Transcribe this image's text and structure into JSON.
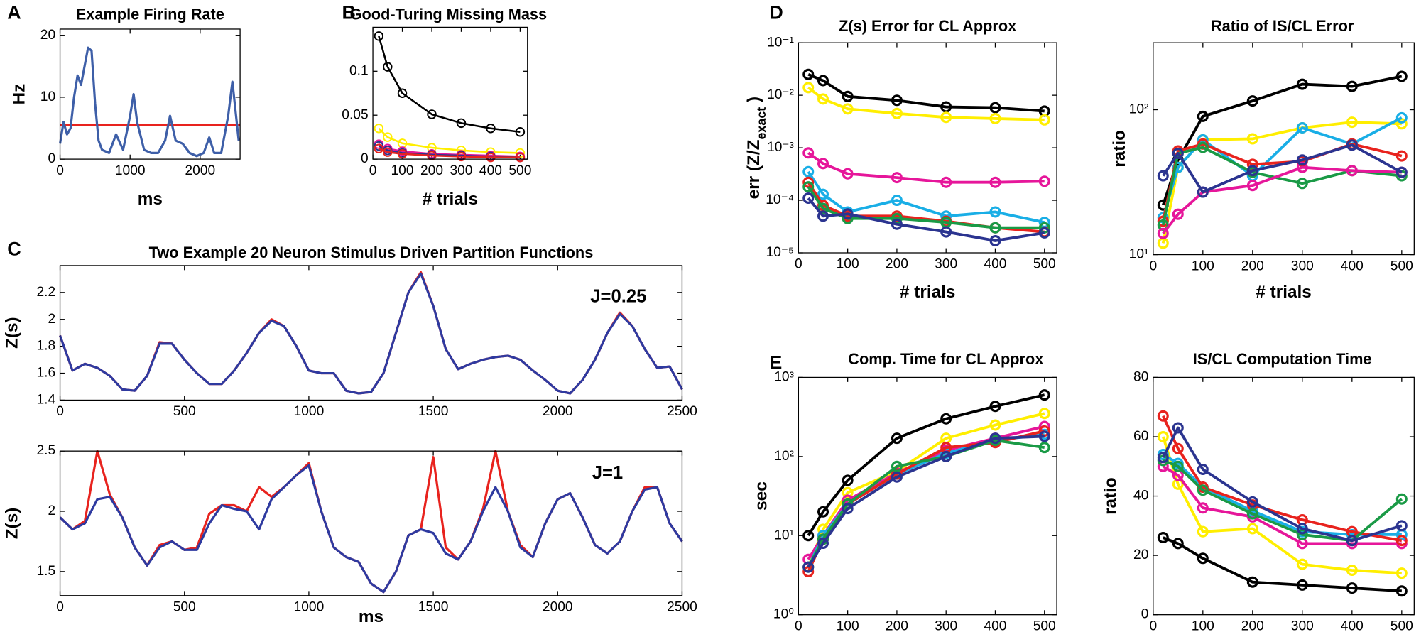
{
  "chart_data": [
    {
      "type": "line",
      "panel": "A",
      "title": "Example Firing Rate",
      "xlabel": "ms",
      "ylabel": "Hz",
      "x": [
        0,
        50,
        100,
        150,
        200,
        250,
        300,
        350,
        400,
        450,
        500,
        550,
        600,
        700,
        800,
        900,
        1000,
        1050,
        1100,
        1200,
        1300,
        1400,
        1500,
        1570,
        1650,
        1750,
        1850,
        1950,
        2050,
        2130,
        2200,
        2300,
        2400,
        2460,
        2550
      ],
      "series": [
        {
          "color": "#3e5fa8",
          "values": [
            2.5,
            6,
            4,
            5,
            10,
            13.5,
            12,
            15,
            18,
            17.5,
            9,
            3,
            1.5,
            1,
            4,
            1.5,
            7,
            10.5,
            6,
            1.5,
            1,
            1,
            3,
            7,
            3,
            2.5,
            1,
            0.5,
            1,
            3.5,
            1,
            1,
            7,
            12.5,
            3
          ]
        }
      ],
      "hline": {
        "value": 5.5,
        "color": "#e8231e"
      },
      "xlim": [
        0,
        2570
      ],
      "ylim": [
        0,
        21
      ],
      "xticks": [
        0,
        1000,
        2000
      ],
      "yticks": [
        0,
        10,
        20
      ]
    },
    {
      "type": "line",
      "panel": "B",
      "title": "Good-Turing Missing Mass",
      "xlabel": "# trials",
      "markers": "small",
      "x": [
        20,
        50,
        100,
        200,
        300,
        400,
        500
      ],
      "series": [
        {
          "color": "#000000",
          "values": [
            0.14,
            0.105,
            0.075,
            0.051,
            0.041,
            0.035,
            0.031
          ]
        },
        {
          "color": "#ffee00",
          "values": [
            0.035,
            0.025,
            0.018,
            0.013,
            0.01,
            0.008,
            0.007
          ]
        },
        {
          "color": "#e6169a",
          "values": [
            0.017,
            0.012,
            0.009,
            0.006,
            0.005,
            0.004,
            0.003
          ]
        },
        {
          "color": "#2b3490",
          "values": [
            0.015,
            0.01,
            0.007,
            0.005,
            0.004,
            0.003,
            0.002
          ]
        },
        {
          "color": "#e8231e",
          "values": [
            0.012,
            0.008,
            0.006,
            0.004,
            0.003,
            0.002,
            0.002
          ]
        }
      ],
      "xlim": [
        0,
        525
      ],
      "ylim": [
        0,
        0.15
      ],
      "xticks": [
        0,
        100,
        200,
        300,
        400,
        500
      ],
      "yticks": [
        0,
        0.05,
        0.1
      ]
    },
    {
      "type": "line",
      "panel": "C",
      "title": "Two Example 20 Neuron Stimulus Driven Partition Functions",
      "ylabel": "Z(s)",
      "annotation": "J=0.25",
      "x": [
        0,
        50,
        100,
        150,
        200,
        250,
        300,
        350,
        400,
        450,
        500,
        550,
        600,
        650,
        700,
        750,
        800,
        850,
        900,
        950,
        1000,
        1050,
        1100,
        1150,
        1200,
        1250,
        1300,
        1350,
        1400,
        1450,
        1500,
        1550,
        1600,
        1650,
        1700,
        1750,
        1800,
        1850,
        1900,
        1950,
        2000,
        2050,
        2100,
        2150,
        2200,
        2250,
        2300,
        2350,
        2400,
        2450,
        2500
      ],
      "series": [
        {
          "color": "#e8231e",
          "values": [
            1.88,
            1.62,
            1.67,
            1.64,
            1.58,
            1.48,
            1.47,
            1.58,
            1.83,
            1.82,
            1.7,
            1.6,
            1.52,
            1.52,
            1.62,
            1.75,
            1.9,
            2.0,
            1.95,
            1.8,
            1.62,
            1.6,
            1.6,
            1.47,
            1.45,
            1.46,
            1.6,
            1.9,
            2.2,
            2.35,
            2.1,
            1.78,
            1.63,
            1.67,
            1.7,
            1.72,
            1.73,
            1.7,
            1.62,
            1.55,
            1.47,
            1.45,
            1.55,
            1.7,
            1.9,
            2.05,
            1.95,
            1.78,
            1.64,
            1.65,
            1.48
          ]
        },
        {
          "color": "#2e3aa0",
          "values": [
            1.88,
            1.62,
            1.67,
            1.64,
            1.58,
            1.48,
            1.47,
            1.58,
            1.82,
            1.82,
            1.7,
            1.6,
            1.52,
            1.52,
            1.62,
            1.75,
            1.9,
            1.99,
            1.95,
            1.8,
            1.62,
            1.6,
            1.6,
            1.47,
            1.45,
            1.46,
            1.6,
            1.9,
            2.2,
            2.34,
            2.1,
            1.78,
            1.63,
            1.67,
            1.7,
            1.72,
            1.73,
            1.7,
            1.62,
            1.55,
            1.47,
            1.45,
            1.55,
            1.7,
            1.9,
            2.04,
            1.95,
            1.78,
            1.64,
            1.65,
            1.48
          ]
        }
      ],
      "xlim": [
        0,
        2500
      ],
      "ylim": [
        1.4,
        2.4
      ],
      "xticks": [
        0,
        500,
        1000,
        1500,
        2000,
        2500
      ],
      "yticks": [
        1.4,
        1.6,
        1.8,
        2,
        2.2
      ]
    },
    {
      "type": "line",
      "xlabel": "ms",
      "ylabel": "Z(s)",
      "annotation": "J=1",
      "x": [
        0,
        50,
        100,
        150,
        200,
        250,
        300,
        350,
        400,
        450,
        500,
        550,
        600,
        650,
        700,
        750,
        800,
        850,
        900,
        950,
        1000,
        1050,
        1100,
        1150,
        1200,
        1250,
        1300,
        1350,
        1400,
        1450,
        1500,
        1550,
        1600,
        1650,
        1700,
        1750,
        1800,
        1850,
        1900,
        1950,
        2000,
        2050,
        2100,
        2150,
        2200,
        2250,
        2300,
        2350,
        2400,
        2450,
        2500
      ],
      "series": [
        {
          "color": "#e8231e",
          "values": [
            1.95,
            1.85,
            1.92,
            2.5,
            2.14,
            1.95,
            1.7,
            1.55,
            1.72,
            1.75,
            1.68,
            1.7,
            1.98,
            2.05,
            2.05,
            2.0,
            2.2,
            2.12,
            2.2,
            2.3,
            2.4,
            2.0,
            1.7,
            1.62,
            1.58,
            1.4,
            1.33,
            1.5,
            1.8,
            1.85,
            2.45,
            1.7,
            1.6,
            1.75,
            2.02,
            2.5,
            2.0,
            1.72,
            1.62,
            1.9,
            2.1,
            2.15,
            1.95,
            1.72,
            1.65,
            1.75,
            2.0,
            2.2,
            2.2,
            1.9,
            1.75
          ]
        },
        {
          "color": "#2e3aa0",
          "values": [
            1.95,
            1.85,
            1.9,
            2.1,
            2.12,
            1.95,
            1.7,
            1.55,
            1.7,
            1.75,
            1.68,
            1.68,
            1.9,
            2.05,
            2.02,
            2.0,
            1.85,
            2.1,
            2.2,
            2.3,
            2.38,
            2.0,
            1.7,
            1.62,
            1.58,
            1.4,
            1.33,
            1.5,
            1.8,
            1.85,
            1.82,
            1.65,
            1.6,
            1.75,
            2.0,
            2.2,
            2.0,
            1.7,
            1.62,
            1.9,
            2.1,
            2.15,
            1.95,
            1.72,
            1.65,
            1.75,
            2.0,
            2.18,
            2.2,
            1.9,
            1.75
          ]
        }
      ],
      "xlim": [
        0,
        2500
      ],
      "ylim": [
        1.3,
        2.5
      ],
      "xticks": [
        0,
        500,
        1000,
        1500,
        2000,
        2500
      ],
      "yticks": [
        1.5,
        2,
        2.5
      ]
    },
    {
      "type": "line",
      "panel": "D",
      "title": "Z(s) Error for CL Approx",
      "xlabel": "# trials",
      "ylabel": [
        "err (Z/Z",
        "exact",
        " )"
      ],
      "log_y": true,
      "markers": "large",
      "x": [
        20,
        50,
        100,
        200,
        300,
        400,
        500
      ],
      "series": [
        {
          "color": "#000000",
          "values": [
            0.025,
            0.019,
            0.0095,
            0.008,
            0.006,
            0.0058,
            0.005
          ]
        },
        {
          "color": "#ffee00",
          "values": [
            0.014,
            0.0085,
            0.0055,
            0.0045,
            0.0038,
            0.0036,
            0.0034
          ]
        },
        {
          "color": "#e6169a",
          "values": [
            0.0008,
            0.0005,
            0.00032,
            0.00027,
            0.00022,
            0.00022,
            0.00023
          ]
        },
        {
          "color": "#19aee6",
          "values": [
            0.00035,
            0.00013,
            6e-05,
            0.0001,
            5e-05,
            6e-05,
            3.8e-05
          ]
        },
        {
          "color": "#e8231e",
          "values": [
            0.00022,
            8e-05,
            5e-05,
            5e-05,
            4e-05,
            3e-05,
            2.5e-05
          ]
        },
        {
          "color": "#1a9a46",
          "values": [
            0.00018,
            7e-05,
            4.5e-05,
            4.5e-05,
            3.8e-05,
            3e-05,
            3e-05
          ]
        },
        {
          "color": "#2b3490",
          "values": [
            0.00011,
            5e-05,
            5.5e-05,
            3.5e-05,
            2.5e-05,
            1.7e-05,
            2.4e-05
          ]
        }
      ],
      "xlim": [
        0,
        525
      ],
      "ylim": [
        1e-05,
        0.1
      ],
      "xticks": [
        0,
        100,
        200,
        300,
        400,
        500
      ],
      "yticks": [
        {
          "value": 1e-05,
          "label": "10⁻⁵"
        },
        {
          "value": 0.0001,
          "label": "10⁻⁴"
        },
        {
          "value": 0.001,
          "label": "10⁻³"
        },
        {
          "value": 0.01,
          "label": "10⁻²"
        },
        {
          "value": 0.1,
          "label": "10⁻¹"
        }
      ]
    },
    {
      "type": "line",
      "title": "Ratio of IS/CL Error",
      "xlabel": "# trials",
      "ylabel": "ratio",
      "log_y": true,
      "markers": "large",
      "x": [
        20,
        50,
        100,
        200,
        300,
        400,
        500
      ],
      "series": [
        {
          "color": "#000000",
          "values": [
            22,
            45,
            90,
            115,
            150,
            145,
            170
          ]
        },
        {
          "color": "#ffee00",
          "values": [
            12,
            40,
            62,
            63,
            75,
            82,
            80
          ]
        },
        {
          "color": "#19aee6",
          "values": [
            18,
            40,
            62,
            35,
            75,
            58,
            88
          ]
        },
        {
          "color": "#e8231e",
          "values": [
            17,
            52,
            58,
            42,
            44,
            58,
            48
          ]
        },
        {
          "color": "#1a9a46",
          "values": [
            16,
            50,
            55,
            37,
            31,
            38,
            35
          ]
        },
        {
          "color": "#e6169a",
          "values": [
            14,
            19,
            27,
            30,
            40,
            38,
            37
          ]
        },
        {
          "color": "#2b3490",
          "values": [
            35,
            50,
            27,
            38,
            45,
            57,
            37
          ]
        }
      ],
      "xlim": [
        0,
        525
      ],
      "ylim": [
        10,
        290
      ],
      "xticks": [
        0,
        100,
        200,
        300,
        400,
        500
      ],
      "yticks": [
        {
          "value": 10,
          "label": "10¹"
        },
        {
          "value": 100,
          "label": "10²"
        }
      ]
    },
    {
      "type": "line",
      "panel": "E",
      "title": "Comp. Time for CL Approx",
      "xlabel": "# trials",
      "ylabel": "sec",
      "log_y": true,
      "markers": "large",
      "x": [
        20,
        50,
        100,
        200,
        300,
        400,
        500
      ],
      "series": [
        {
          "color": "#000000",
          "values": [
            10,
            20,
            50,
            170,
            300,
            430,
            600
          ]
        },
        {
          "color": "#ffee00",
          "values": [
            4,
            12,
            35,
            65,
            170,
            250,
            350
          ]
        },
        {
          "color": "#e6169a",
          "values": [
            5,
            10,
            28,
            62,
            120,
            170,
            240
          ]
        },
        {
          "color": "#19aee6",
          "values": [
            4,
            10,
            25,
            60,
            110,
            160,
            190
          ]
        },
        {
          "color": "#e8231e",
          "values": [
            3.5,
            9,
            25,
            60,
            130,
            150,
            210
          ]
        },
        {
          "color": "#1a9a46",
          "values": [
            4,
            9,
            25,
            75,
            100,
            160,
            130
          ]
        },
        {
          "color": "#2b3490",
          "values": [
            4,
            8,
            22,
            55,
            100,
            170,
            180
          ]
        }
      ],
      "xlim": [
        0,
        525
      ],
      "ylim": [
        1,
        1000
      ],
      "xticks": [
        0,
        100,
        200,
        300,
        400,
        500
      ],
      "yticks": [
        {
          "value": 1,
          "label": "10⁰"
        },
        {
          "value": 10,
          "label": "10¹"
        },
        {
          "value": 100,
          "label": "10²"
        },
        {
          "value": 1000,
          "label": "10³"
        }
      ]
    },
    {
      "type": "line",
      "title": "IS/CL Computation Time",
      "xlabel": "# trials",
      "ylabel": "ratio",
      "markers": "large",
      "x": [
        20,
        50,
        100,
        200,
        300,
        400,
        500
      ],
      "series": [
        {
          "color": "#000000",
          "values": [
            26,
            24,
            19,
            11,
            10,
            9,
            8
          ]
        },
        {
          "color": "#ffee00",
          "values": [
            60,
            44,
            28,
            29,
            17,
            15,
            14
          ]
        },
        {
          "color": "#e6169a",
          "values": [
            50,
            47,
            36,
            33,
            24,
            24,
            24
          ]
        },
        {
          "color": "#19aee6",
          "values": [
            54,
            51,
            43,
            35,
            28,
            27,
            27
          ]
        },
        {
          "color": "#e8231e",
          "values": [
            67,
            56,
            43,
            37,
            32,
            28,
            25
          ]
        },
        {
          "color": "#1a9a46",
          "values": [
            52,
            50,
            42,
            34,
            27,
            25,
            39
          ]
        },
        {
          "color": "#2b3490",
          "values": [
            53,
            63,
            49,
            38,
            29,
            25,
            30
          ]
        }
      ],
      "xlim": [
        0,
        525
      ],
      "ylim": [
        0,
        80
      ],
      "xticks": [
        0,
        100,
        200,
        300,
        400,
        500
      ],
      "yticks": [
        0,
        20,
        40,
        60,
        80
      ]
    }
  ]
}
